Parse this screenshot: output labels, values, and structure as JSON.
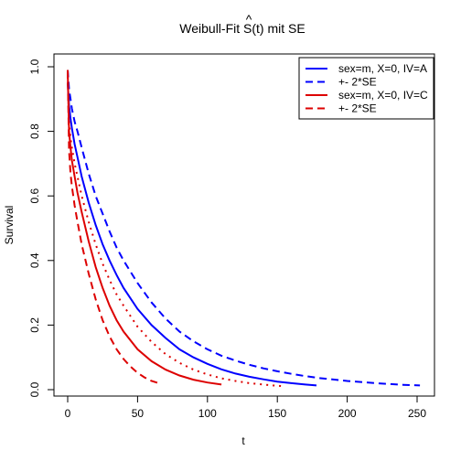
{
  "chart_data": {
    "type": "line",
    "title_parts": {
      "prefix": "Weibull-Fit ",
      "symbol": "S",
      "hat": "^",
      "arg": "(t)",
      "suffix": " mit SE"
    },
    "xlabel": "t",
    "ylabel": "Survival",
    "xlim": [
      0,
      250
    ],
    "ylim": [
      0,
      1
    ],
    "x_ticks": [
      0,
      50,
      100,
      150,
      200,
      250
    ],
    "y_ticks": [
      0.0,
      0.2,
      0.4,
      0.6,
      0.8,
      1.0
    ],
    "x_tick_labels": [
      "0",
      "50",
      "100",
      "150",
      "200",
      "250"
    ],
    "y_tick_labels": [
      "0.0",
      "0.2",
      "0.4",
      "0.6",
      "0.8",
      "1.0"
    ],
    "legend_position": "top-right",
    "legend": [
      {
        "label": "sex=m, X=0, IV=A",
        "color": "#0000ff",
        "style": "solid"
      },
      {
        "label": "+- 2*SE",
        "color": "#0000ff",
        "style": "dashed"
      },
      {
        "label": "sex=m, X=0, IV=C",
        "color": "#dd0000",
        "style": "solid"
      },
      {
        "label": "+- 2*SE",
        "color": "#dd0000",
        "style": "dashed"
      }
    ],
    "series": [
      {
        "color": "#0000ff",
        "style": "solid",
        "x": [
          0,
          1,
          2,
          3,
          5,
          7,
          10,
          15,
          20,
          25,
          30,
          35,
          40,
          50,
          60,
          70,
          80,
          90,
          100,
          110,
          120,
          130,
          140,
          150,
          160,
          170,
          178
        ],
        "y": [
          0.95,
          0.88,
          0.84,
          0.81,
          0.76,
          0.72,
          0.66,
          0.58,
          0.51,
          0.45,
          0.4,
          0.355,
          0.315,
          0.25,
          0.2,
          0.16,
          0.125,
          0.1,
          0.08,
          0.063,
          0.05,
          0.04,
          0.032,
          0.025,
          0.02,
          0.016,
          0.013
        ]
      },
      {
        "color": "#0000ff",
        "style": "dashed",
        "x": [
          0,
          1,
          2,
          3,
          5,
          7,
          10,
          15,
          20,
          25,
          30,
          35,
          40,
          50,
          60,
          70,
          80,
          90,
          100,
          110,
          120,
          130,
          140,
          150,
          160,
          170,
          180,
          200,
          220,
          240,
          252
        ],
        "y": [
          0.99,
          0.93,
          0.9,
          0.87,
          0.83,
          0.8,
          0.75,
          0.67,
          0.6,
          0.545,
          0.49,
          0.44,
          0.4,
          0.33,
          0.27,
          0.22,
          0.18,
          0.15,
          0.125,
          0.105,
          0.09,
          0.077,
          0.066,
          0.057,
          0.049,
          0.042,
          0.036,
          0.027,
          0.02,
          0.015,
          0.013
        ]
      },
      {
        "color": "#dd0000",
        "style": "dotted",
        "x": [
          0,
          1,
          2,
          3,
          5,
          7,
          10,
          15,
          20,
          25,
          30,
          35,
          40,
          50,
          60,
          70,
          80,
          90,
          100,
          110,
          120,
          130,
          140,
          150,
          153
        ],
        "y": [
          0.97,
          0.83,
          0.78,
          0.75,
          0.7,
          0.66,
          0.6,
          0.52,
          0.45,
          0.39,
          0.34,
          0.295,
          0.26,
          0.195,
          0.148,
          0.11,
          0.083,
          0.062,
          0.047,
          0.035,
          0.027,
          0.02,
          0.016,
          0.012,
          0.011
        ]
      },
      {
        "color": "#dd0000",
        "style": "solid",
        "x": [
          0,
          1,
          2,
          3,
          5,
          7,
          10,
          15,
          20,
          25,
          30,
          35,
          40,
          50,
          60,
          70,
          80,
          90,
          100,
          110
        ],
        "y": [
          0.99,
          0.8,
          0.75,
          0.71,
          0.66,
          0.61,
          0.55,
          0.46,
          0.38,
          0.315,
          0.26,
          0.215,
          0.18,
          0.125,
          0.088,
          0.062,
          0.044,
          0.031,
          0.022,
          0.016
        ]
      },
      {
        "color": "#dd0000",
        "style": "dashed",
        "x": [
          0,
          1,
          2,
          3,
          5,
          7,
          10,
          15,
          20,
          25,
          30,
          35,
          40,
          45,
          50,
          55,
          60,
          65
        ],
        "y": [
          0.99,
          0.74,
          0.67,
          0.63,
          0.57,
          0.52,
          0.45,
          0.36,
          0.28,
          0.215,
          0.165,
          0.125,
          0.095,
          0.071,
          0.052,
          0.038,
          0.027,
          0.02
        ]
      }
    ]
  }
}
